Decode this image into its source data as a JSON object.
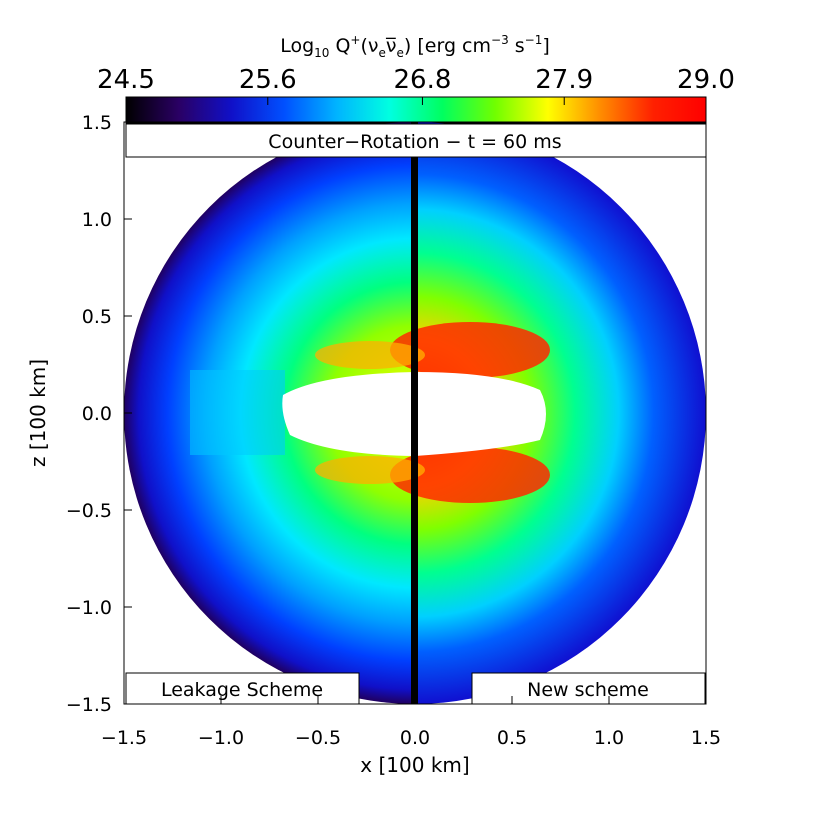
{
  "chart_data": {
    "type": "heatmap",
    "title": "Counter−Rotation − t = 60 ms",
    "colorbar": {
      "label_prefix": "Log",
      "label_sub": "10",
      "label_rest": " Q",
      "label_sup": "+",
      "label_nu": "(ν",
      "label_e1": "e",
      "label_nubar": "ν̅",
      "label_e2": "e",
      "label_units": ") [erg cm",
      "label_units_sup": "−3",
      "label_units_end": " s",
      "label_units_sup2": "−1",
      "label_close": "]",
      "label_full": "Log10 Q+(νeν̅e) [erg cm−3 s−1]",
      "range": [
        24.5,
        29.0
      ],
      "ticks": [
        24.5,
        25.6,
        26.8,
        27.9,
        29.0
      ],
      "tick_labels": [
        "24.5",
        "25.6",
        "26.8",
        "27.9",
        "29.0"
      ],
      "colors": [
        "#000000",
        "#2a0064",
        "#1010c8",
        "#0050ff",
        "#00b4ff",
        "#00ffe0",
        "#00ff60",
        "#70ff00",
        "#ffff00",
        "#ff8c00",
        "#ff2000",
        "#ff0000"
      ]
    },
    "xlabel": "x [100 km]",
    "ylabel": "z [100 km]",
    "xlim": [
      -1.5,
      1.5
    ],
    "ylim": [
      -1.5,
      1.5
    ],
    "xticks": [
      -1.5,
      -1.0,
      -0.5,
      0.0,
      0.5,
      1.0,
      1.5
    ],
    "xtick_labels": [
      "−1.5",
      "−1.0",
      "−0.5",
      "0.0",
      "0.5",
      "1.0",
      "1.5"
    ],
    "yticks": [
      -1.5,
      -1.0,
      -0.5,
      0.0,
      0.5,
      1.0,
      1.5
    ],
    "ytick_labels": [
      "−1.5",
      "−1.0",
      "−0.5",
      "0.0",
      "0.5",
      "1.0",
      "1.5"
    ],
    "left_panel_label": "Leakage Scheme",
    "right_panel_label": "New scheme",
    "domain_radius": 1.5,
    "left_inner_boundary_x": -0.7,
    "right_inner_boundary_x": 0.68,
    "inner_boundary_half_height": 0.2,
    "peak_value_left": 27.6,
    "peak_value_right": 29.0
  }
}
